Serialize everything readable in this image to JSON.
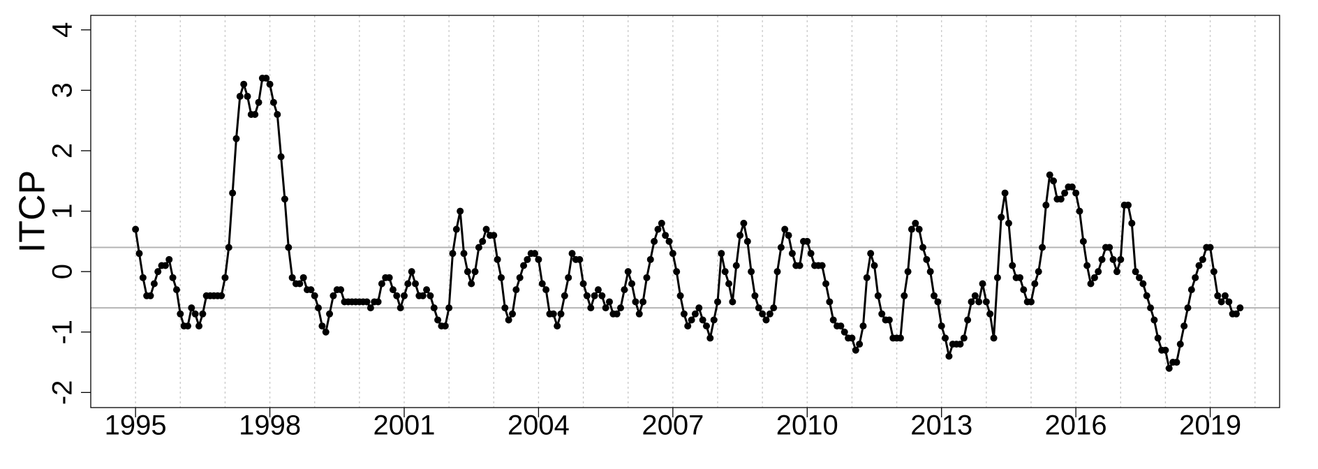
{
  "chart_data": {
    "type": "line",
    "y_label": "ITCP",
    "color": "#000000",
    "xlim": [
      1994.0,
      2020.55
    ],
    "xticks": [
      1995,
      1998,
      2001,
      2004,
      2007,
      2010,
      2013,
      2016,
      2019
    ],
    "xgrid": [
      1995,
      1996,
      1997,
      1998,
      1999,
      2000,
      2001,
      2002,
      2003,
      2004,
      2005,
      2006,
      2007,
      2008,
      2009,
      2010,
      2011,
      2012,
      2013,
      2014,
      2015,
      2016,
      2017,
      2018,
      2019,
      2020
    ],
    "ylim": [
      -2.25,
      4.24
    ],
    "yticks": [
      -2,
      -1,
      0,
      1,
      2,
      3,
      4
    ],
    "hlines": [
      0.4,
      -0.6
    ],
    "x": [
      1995,
      1995.083,
      1995.167,
      1995.25,
      1995.333,
      1995.417,
      1995.5,
      1995.583,
      1995.667,
      1995.75,
      1995.833,
      1995.917,
      1996,
      1996.083,
      1996.167,
      1996.25,
      1996.333,
      1996.417,
      1996.5,
      1996.583,
      1996.667,
      1996.75,
      1996.833,
      1996.917,
      1997,
      1997.083,
      1997.167,
      1997.25,
      1997.333,
      1997.417,
      1997.5,
      1997.583,
      1997.667,
      1997.75,
      1997.833,
      1997.917,
      1998,
      1998.083,
      1998.167,
      1998.25,
      1998.333,
      1998.417,
      1998.5,
      1998.583,
      1998.667,
      1998.75,
      1998.833,
      1998.917,
      1999,
      1999.083,
      1999.167,
      1999.25,
      1999.333,
      1999.417,
      1999.5,
      1999.583,
      1999.667,
      1999.75,
      1999.833,
      1999.917,
      2000,
      2000.083,
      2000.167,
      2000.25,
      2000.333,
      2000.417,
      2000.5,
      2000.583,
      2000.667,
      2000.75,
      2000.833,
      2000.917,
      2001,
      2001.083,
      2001.167,
      2001.25,
      2001.333,
      2001.417,
      2001.5,
      2001.583,
      2001.667,
      2001.75,
      2001.833,
      2001.917,
      2002,
      2002.083,
      2002.167,
      2002.25,
      2002.333,
      2002.417,
      2002.5,
      2002.583,
      2002.667,
      2002.75,
      2002.833,
      2002.917,
      2003,
      2003.083,
      2003.167,
      2003.25,
      2003.333,
      2003.417,
      2003.5,
      2003.583,
      2003.667,
      2003.75,
      2003.833,
      2003.917,
      2004,
      2004.083,
      2004.167,
      2004.25,
      2004.333,
      2004.417,
      2004.5,
      2004.583,
      2004.667,
      2004.75,
      2004.833,
      2004.917,
      2005,
      2005.083,
      2005.167,
      2005.25,
      2005.333,
      2005.417,
      2005.5,
      2005.583,
      2005.667,
      2005.75,
      2005.833,
      2005.917,
      2006,
      2006.083,
      2006.167,
      2006.25,
      2006.333,
      2006.417,
      2006.5,
      2006.583,
      2006.667,
      2006.75,
      2006.833,
      2006.917,
      2007,
      2007.083,
      2007.167,
      2007.25,
      2007.333,
      2007.417,
      2007.5,
      2007.583,
      2007.667,
      2007.75,
      2007.833,
      2007.917,
      2008,
      2008.083,
      2008.167,
      2008.25,
      2008.333,
      2008.417,
      2008.5,
      2008.583,
      2008.667,
      2008.75,
      2008.833,
      2008.917,
      2009,
      2009.083,
      2009.167,
      2009.25,
      2009.333,
      2009.417,
      2009.5,
      2009.583,
      2009.667,
      2009.75,
      2009.833,
      2009.917,
      2010,
      2010.083,
      2010.167,
      2010.25,
      2010.333,
      2010.417,
      2010.5,
      2010.583,
      2010.667,
      2010.75,
      2010.833,
      2010.917,
      2011,
      2011.083,
      2011.167,
      2011.25,
      2011.333,
      2011.417,
      2011.5,
      2011.583,
      2011.667,
      2011.75,
      2011.833,
      2011.917,
      2012,
      2012.083,
      2012.167,
      2012.25,
      2012.333,
      2012.417,
      2012.5,
      2012.583,
      2012.667,
      2012.75,
      2012.833,
      2012.917,
      2013,
      2013.083,
      2013.167,
      2013.25,
      2013.333,
      2013.417,
      2013.5,
      2013.583,
      2013.667,
      2013.75,
      2013.833,
      2013.917,
      2014,
      2014.083,
      2014.167,
      2014.25,
      2014.333,
      2014.417,
      2014.5,
      2014.583,
      2014.667,
      2014.75,
      2014.833,
      2014.917,
      2015,
      2015.083,
      2015.167,
      2015.25,
      2015.333,
      2015.417,
      2015.5,
      2015.583,
      2015.667,
      2015.75,
      2015.833,
      2015.917,
      2016,
      2016.083,
      2016.167,
      2016.25,
      2016.333,
      2016.417,
      2016.5,
      2016.583,
      2016.667,
      2016.75,
      2016.833,
      2016.917,
      2017,
      2017.083,
      2017.167,
      2017.25,
      2017.333,
      2017.417,
      2017.5,
      2017.583,
      2017.667,
      2017.75,
      2017.833,
      2017.917,
      2018,
      2018.083,
      2018.167,
      2018.25,
      2018.333,
      2018.417,
      2018.5,
      2018.583,
      2018.667,
      2018.75,
      2018.833,
      2018.917,
      2019,
      2019.083,
      2019.167,
      2019.25,
      2019.333,
      2019.417,
      2019.5,
      2019.583,
      2019.667
    ],
    "values": [
      0.7,
      0.3,
      -0.1,
      -0.4,
      -0.4,
      -0.2,
      0.0,
      0.1,
      0.1,
      0.2,
      -0.1,
      -0.3,
      -0.7,
      -0.9,
      -0.9,
      -0.6,
      -0.7,
      -0.9,
      -0.7,
      -0.4,
      -0.4,
      -0.4,
      -0.4,
      -0.4,
      -0.1,
      0.4,
      1.3,
      2.2,
      2.9,
      3.1,
      2.9,
      2.6,
      2.6,
      2.8,
      3.2,
      3.2,
      3.1,
      2.8,
      2.6,
      1.9,
      1.2,
      0.4,
      -0.1,
      -0.2,
      -0.2,
      -0.1,
      -0.3,
      -0.3,
      -0.4,
      -0.6,
      -0.9,
      -1.0,
      -0.7,
      -0.4,
      -0.3,
      -0.3,
      -0.5,
      -0.5,
      -0.5,
      -0.5,
      -0.5,
      -0.5,
      -0.5,
      -0.6,
      -0.5,
      -0.5,
      -0.2,
      -0.1,
      -0.1,
      -0.3,
      -0.4,
      -0.6,
      -0.4,
      -0.2,
      0.0,
      -0.2,
      -0.4,
      -0.4,
      -0.3,
      -0.4,
      -0.6,
      -0.8,
      -0.9,
      -0.9,
      -0.6,
      0.3,
      0.7,
      1.0,
      0.3,
      0.0,
      -0.2,
      0.0,
      0.4,
      0.5,
      0.7,
      0.6,
      0.6,
      0.2,
      -0.1,
      -0.6,
      -0.8,
      -0.7,
      -0.3,
      -0.1,
      0.1,
      0.2,
      0.3,
      0.3,
      0.2,
      -0.2,
      -0.3,
      -0.7,
      -0.7,
      -0.9,
      -0.7,
      -0.4,
      -0.1,
      0.3,
      0.2,
      0.2,
      -0.2,
      -0.4,
      -0.6,
      -0.4,
      -0.3,
      -0.4,
      -0.6,
      -0.5,
      -0.7,
      -0.7,
      -0.6,
      -0.3,
      0.0,
      -0.2,
      -0.5,
      -0.7,
      -0.5,
      -0.1,
      0.2,
      0.5,
      0.7,
      0.8,
      0.6,
      0.5,
      0.3,
      0.0,
      -0.4,
      -0.7,
      -0.9,
      -0.8,
      -0.7,
      -0.6,
      -0.8,
      -0.9,
      -1.1,
      -0.8,
      -0.5,
      0.3,
      0.0,
      -0.2,
      -0.5,
      0.1,
      0.6,
      0.8,
      0.5,
      0.0,
      -0.4,
      -0.6,
      -0.7,
      -0.8,
      -0.7,
      -0.6,
      0.0,
      0.4,
      0.7,
      0.6,
      0.3,
      0.1,
      0.1,
      0.5,
      0.5,
      0.3,
      0.1,
      0.1,
      0.1,
      -0.2,
      -0.5,
      -0.8,
      -0.9,
      -0.9,
      -1.0,
      -1.1,
      -1.1,
      -1.3,
      -1.2,
      -0.9,
      -0.1,
      0.3,
      0.1,
      -0.4,
      -0.7,
      -0.8,
      -0.8,
      -1.1,
      -1.1,
      -1.1,
      -0.4,
      0.0,
      0.7,
      0.8,
      0.7,
      0.4,
      0.2,
      0.0,
      -0.4,
      -0.5,
      -0.9,
      -1.1,
      -1.4,
      -1.2,
      -1.2,
      -1.2,
      -1.1,
      -0.8,
      -0.5,
      -0.4,
      -0.5,
      -0.2,
      -0.5,
      -0.7,
      -1.1,
      -0.1,
      0.9,
      1.3,
      0.8,
      0.1,
      -0.1,
      -0.1,
      -0.3,
      -0.5,
      -0.5,
      -0.2,
      0.0,
      0.4,
      1.1,
      1.6,
      1.5,
      1.2,
      1.2,
      1.3,
      1.4,
      1.4,
      1.3,
      1.0,
      0.5,
      0.1,
      -0.2,
      -0.1,
      0.0,
      0.2,
      0.4,
      0.4,
      0.2,
      0.0,
      0.2,
      1.1,
      1.1,
      0.8,
      0.0,
      -0.1,
      -0.2,
      -0.4,
      -0.6,
      -0.8,
      -1.1,
      -1.3,
      -1.3,
      -1.6,
      -1.5,
      -1.5,
      -1.2,
      -0.9,
      -0.6,
      -0.3,
      -0.1,
      0.1,
      0.2,
      0.4,
      0.4,
      0.0,
      -0.4,
      -0.5,
      -0.4,
      -0.5,
      -0.7,
      -0.7,
      -0.6
    ]
  }
}
